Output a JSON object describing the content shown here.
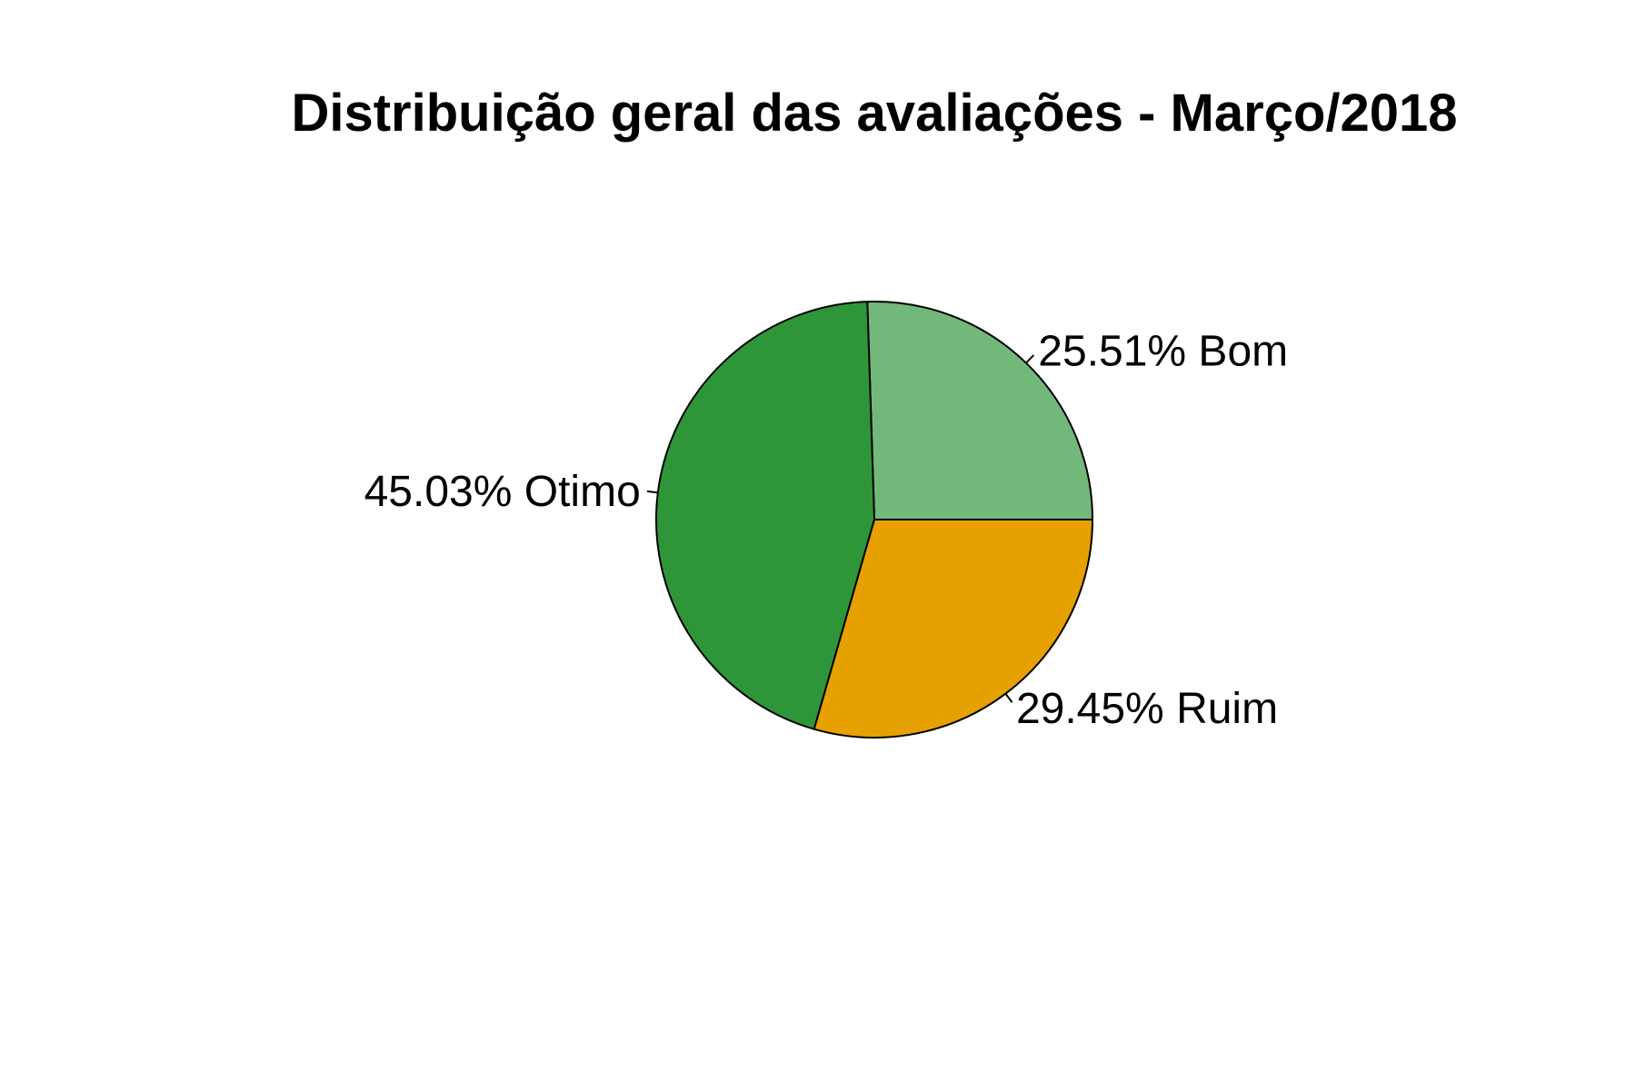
{
  "chart_data": {
    "type": "pie",
    "title": "Distribuição geral das avaliações - Março/2018",
    "start_angle_deg": 0,
    "direction": "counterclockwise",
    "slices": [
      {
        "name": "Bom",
        "value": 25.51,
        "label": "25.51% Bom",
        "color": "#72b87a"
      },
      {
        "name": "Otimo",
        "value": 45.03,
        "label": "45.03% Otimo",
        "color": "#2e9639"
      },
      {
        "name": "Ruim",
        "value": 29.45,
        "label": "29.45% Ruim",
        "color": "#e6a100"
      }
    ],
    "legend": "none",
    "grid": false
  }
}
